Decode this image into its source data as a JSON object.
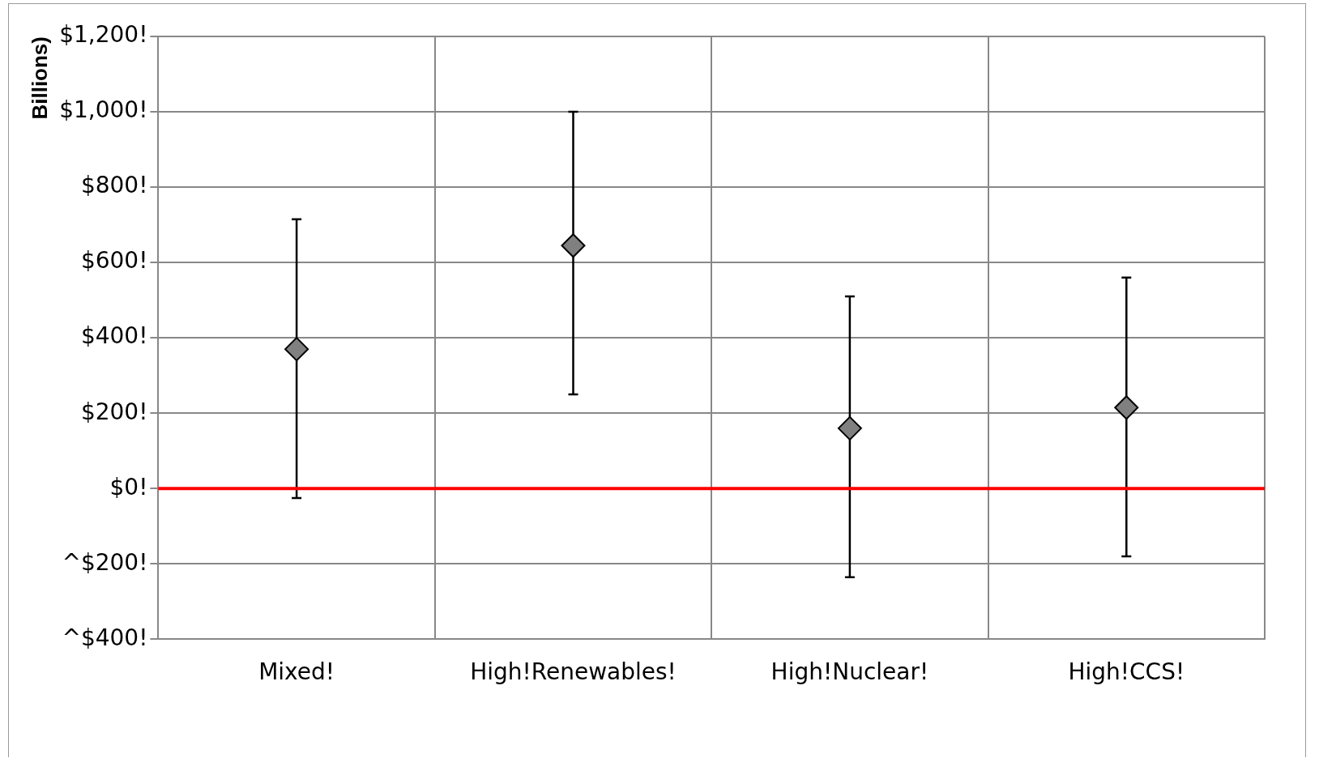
{
  "chart_data": {
    "type": "scatter",
    "ylabel": "Billions)",
    "categories": [
      "Mixed!",
      "High!Renewables!",
      "High!Nuclear!",
      "High!CCS!"
    ],
    "series": [
      {
        "color": "#808080",
        "values": [
          370,
          645,
          160,
          215
        ],
        "errors": [
          [
            -25,
            715
          ],
          [
            250,
            1000
          ],
          [
            -235,
            510
          ],
          [
            -180,
            560
          ]
        ]
      }
    ],
    "ylim": [
      -400,
      1200
    ],
    "yticks": [
      {
        "value": -400,
        "label": "^$400!"
      },
      {
        "value": -200,
        "label": "^$200!"
      },
      {
        "value": 0,
        "label": "$0!"
      },
      {
        "value": 200,
        "label": "$200!"
      },
      {
        "value": 400,
        "label": "$400!"
      },
      {
        "value": 600,
        "label": "$600!"
      },
      {
        "value": 800,
        "label": "$800!"
      },
      {
        "value": 1000,
        "label": "$1,000!"
      },
      {
        "value": 1200,
        "label": "$1,200!"
      }
    ],
    "ref_lines": [
      {
        "axis": "y",
        "value": 0,
        "color": "#ff0000"
      }
    ],
    "grid": true,
    "marker": "diamond",
    "legend": false
  }
}
